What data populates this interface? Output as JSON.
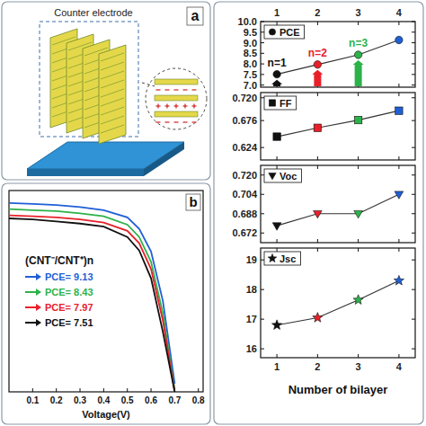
{
  "diagram": {
    "label": "a",
    "texts": [
      "Counter electrode"
    ]
  },
  "chart_data": [
    {
      "type": "line",
      "panel_label": "b",
      "x_label": "Voltage(V)",
      "legend_title": "(CNT⁻/CNT⁺)n",
      "legend": "upper left",
      "x": [
        0,
        0.1,
        0.2,
        0.3,
        0.4,
        0.5,
        0.55,
        0.6,
        0.65,
        0.7
      ],
      "xlim": [
        0,
        0.82
      ],
      "xticks": [
        0.1,
        0.2,
        0.3,
        0.4,
        0.5,
        0.6,
        0.7,
        0.8
      ],
      "ylim": [
        0,
        19.5
      ],
      "tick_labels": "x",
      "series": [
        {
          "name": "PCE= 9.13",
          "color": "#1f5fd6",
          "values": [
            18.3,
            18.2,
            18.1,
            17.9,
            17.6,
            16.9,
            15.8,
            13.6,
            8.8,
            0.8
          ]
        },
        {
          "name": "PCE= 8.43",
          "color": "#2db24a",
          "values": [
            17.7,
            17.6,
            17.5,
            17.3,
            17.0,
            16.2,
            15.0,
            12.6,
            7.6,
            0.2
          ]
        },
        {
          "name": "PCE= 7.97",
          "color": "#e8202a",
          "values": [
            17.1,
            17.0,
            16.9,
            16.7,
            16.4,
            15.6,
            14.4,
            11.9,
            6.9,
            0.0
          ]
        },
        {
          "name": "PCE= 7.51",
          "color": "#111111",
          "values": [
            16.8,
            16.7,
            16.5,
            16.3,
            16.0,
            15.0,
            13.7,
            11.0,
            5.8,
            0.0
          ]
        }
      ]
    },
    {
      "type": "line",
      "y_label": "PCE",
      "legend": "upper left",
      "marker": "circle",
      "x": [
        1,
        2,
        3,
        4
      ],
      "values": [
        7.51,
        7.97,
        8.43,
        9.13
      ],
      "colors": [
        "#111111",
        "#e8202a",
        "#2db24a",
        "#1f5fd6"
      ],
      "annotations": [
        "n=1",
        "n=2",
        "n=3"
      ],
      "xlim": [
        0.6,
        4.4
      ],
      "xticks": [
        1,
        2,
        3,
        4
      ],
      "ylim": [
        6.9,
        10.0
      ],
      "yticks": [
        {
          "value": 7,
          "label": "7.0"
        },
        7.5,
        {
          "value": 8,
          "label": "8.0"
        },
        8.5,
        {
          "value": 9,
          "label": "9.0"
        },
        9.5,
        {
          "value": 10,
          "label": "10.0"
        }
      ]
    },
    {
      "type": "line",
      "y_label": "FF",
      "legend": "upper left",
      "marker": "square",
      "tick_labels": "y",
      "x": [
        1,
        2,
        3,
        4
      ],
      "values": [
        0.645,
        0.662,
        0.677,
        0.695
      ],
      "colors": [
        "#111111",
        "#e8202a",
        "#2db24a",
        "#1f5fd6"
      ],
      "xlim": [
        0.6,
        4.4
      ],
      "xticks": [
        1,
        2,
        3,
        4
      ],
      "ylim": [
        0.6,
        0.73
      ],
      "yticks": [
        0.624,
        0.676,
        {
          "value": 0.72,
          "label": "0.720"
        }
      ]
    },
    {
      "type": "line",
      "y_label": "Voc",
      "legend": "upper left",
      "marker": "triangle_down",
      "tick_labels": "y",
      "x": [
        1,
        2,
        3,
        4
      ],
      "values": [
        0.678,
        0.688,
        0.688,
        0.704
      ],
      "colors": [
        "#111111",
        "#e8202a",
        "#2db24a",
        "#1f5fd6"
      ],
      "xlim": [
        0.6,
        4.4
      ],
      "xticks": [
        1,
        2,
        3,
        4
      ],
      "ylim": [
        0.664,
        0.728
      ],
      "yticks": [
        0.672,
        0.688,
        0.704,
        {
          "value": 0.72,
          "label": "0.720"
        }
      ]
    },
    {
      "type": "line",
      "y_label": "Jsc",
      "legend": "upper left",
      "marker": "star",
      "x_label": "Number of bilayer",
      "x": [
        1,
        2,
        3,
        4
      ],
      "values": [
        16.8,
        17.05,
        17.65,
        18.3
      ],
      "colors": [
        "#111111",
        "#e8202a",
        "#2db24a",
        "#1f5fd6"
      ],
      "xlim": [
        0.6,
        4.4
      ],
      "xticks": [
        1,
        2,
        3,
        4
      ],
      "ylim": [
        15.7,
        19.4
      ],
      "yticks": [
        16,
        17,
        18,
        19
      ]
    }
  ]
}
